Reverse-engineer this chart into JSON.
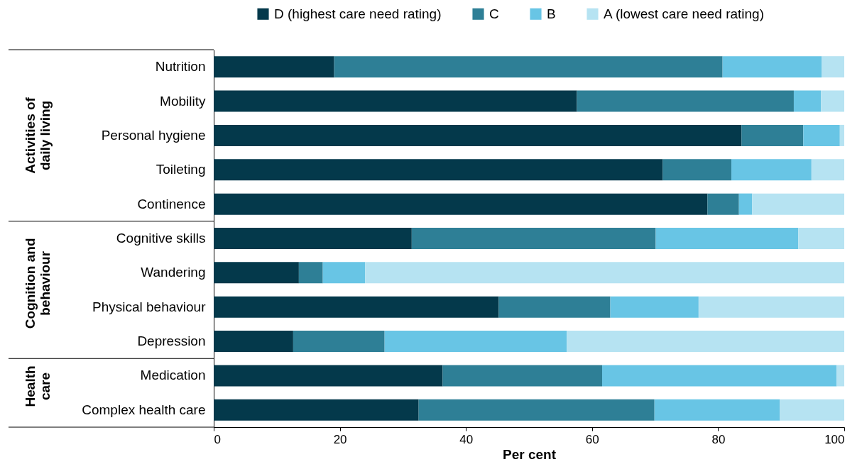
{
  "chart_data": {
    "type": "bar",
    "orientation": "horizontal",
    "stacked": true,
    "categories": [
      "Nutrition",
      "Mobility",
      "Personal hygiene",
      "Toileting",
      "Continence",
      "Cognitive skills",
      "Wandering",
      "Physical behaviour",
      "Depression",
      "Medication",
      "Complex health care"
    ],
    "series": [
      {
        "name": "D (highest care need rating)",
        "color": "#04394b",
        "values": [
          19.1,
          57.6,
          83.7,
          71.2,
          78.3,
          31.4,
          13.5,
          45.2,
          12.6,
          36.3,
          32.5
        ]
      },
      {
        "name": "C",
        "color": "#2e7f96",
        "values": [
          61.6,
          34.4,
          9.8,
          10.9,
          5.0,
          38.7,
          3.8,
          17.7,
          14.5,
          25.3,
          37.4
        ]
      },
      {
        "name": "B",
        "color": "#68c5e5",
        "values": [
          15.7,
          4.3,
          5.8,
          12.7,
          2.1,
          22.6,
          6.7,
          14.0,
          28.9,
          37.2,
          19.9
        ]
      },
      {
        "name": "A (lowest care need rating)",
        "color": "#b6e3f2",
        "values": [
          3.6,
          3.7,
          0.7,
          5.2,
          14.6,
          7.3,
          76.0,
          23.1,
          44.0,
          1.2,
          10.2
        ]
      }
    ],
    "xlim": [
      0,
      100
    ],
    "xticks": [
      0,
      20,
      40,
      60,
      80,
      100
    ],
    "xlabel": "Per cent",
    "annotations": [
      "Activities of daily living",
      "Cognition and behaviour",
      "Health care"
    ],
    "legend": "top right",
    "grid": false
  }
}
